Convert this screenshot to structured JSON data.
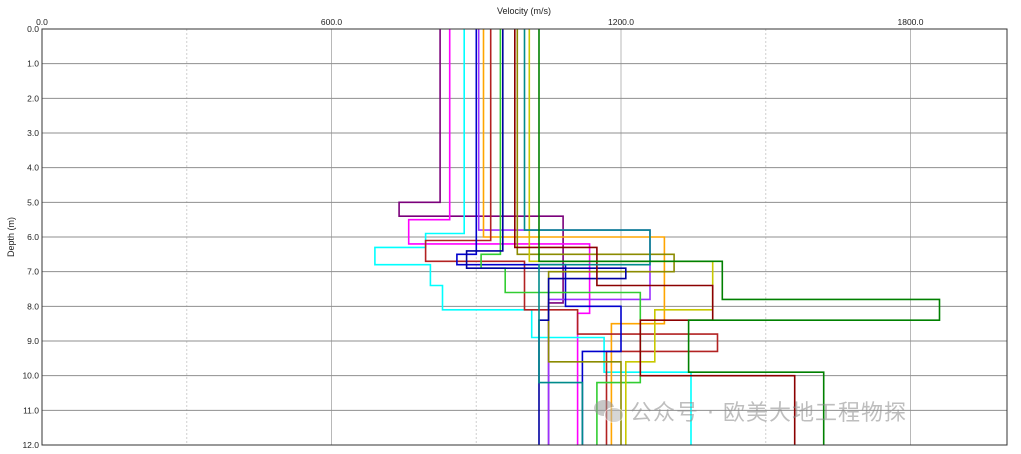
{
  "chart_data": {
    "type": "line",
    "title": "",
    "xlabel": "Velocity (m/s)",
    "ylabel": "Depth (m)",
    "xlim": [
      0,
      2000
    ],
    "ylim": [
      0,
      12
    ],
    "x_axis_position": "top",
    "y_inverted": true,
    "x_ticks": [
      0,
      600,
      1200,
      1800
    ],
    "x_tick_labels": [
      "0.0",
      "600.0",
      "1200.0",
      "1800.0"
    ],
    "y_ticks": [
      0,
      1,
      2,
      3,
      4,
      5,
      6,
      7,
      8,
      9,
      10,
      11,
      12
    ],
    "y_tick_labels": [
      "0.0",
      "1.0",
      "2.0",
      "3.0",
      "4.0",
      "5.0",
      "6.0",
      "7.0",
      "8.0",
      "9.0",
      "10.0",
      "11.0",
      "12.0"
    ],
    "grid": true,
    "legend": "none",
    "series": [
      {
        "color": "#7b007b",
        "points": [
          [
            825,
            0
          ],
          [
            825,
            5.0
          ],
          [
            740,
            5.0
          ],
          [
            740,
            5.4
          ],
          [
            1080,
            5.4
          ],
          [
            1080,
            7.9
          ],
          [
            1050,
            7.9
          ],
          [
            1050,
            12
          ]
        ]
      },
      {
        "color": "#ff00ff",
        "points": [
          [
            845,
            0
          ],
          [
            845,
            5.5
          ],
          [
            760,
            5.5
          ],
          [
            760,
            6.2
          ],
          [
            1135,
            6.2
          ],
          [
            1135,
            8.2
          ],
          [
            1110,
            8.2
          ],
          [
            1110,
            12
          ]
        ]
      },
      {
        "color": "#00ffff",
        "points": [
          [
            875,
            0
          ],
          [
            875,
            5.9
          ],
          [
            795,
            5.9
          ],
          [
            795,
            6.3
          ],
          [
            690,
            6.3
          ],
          [
            690,
            6.8
          ],
          [
            805,
            6.8
          ],
          [
            805,
            7.4
          ],
          [
            830,
            7.4
          ],
          [
            830,
            8.1
          ],
          [
            1015,
            8.1
          ],
          [
            1015,
            8.9
          ],
          [
            1165,
            8.9
          ],
          [
            1165,
            9.9
          ],
          [
            1345,
            9.9
          ],
          [
            1345,
            12
          ]
        ]
      },
      {
        "color": "#9b30ff",
        "points": [
          [
            905,
            0
          ],
          [
            905,
            5.8
          ],
          [
            1260,
            5.8
          ],
          [
            1260,
            7.8
          ],
          [
            1050,
            7.8
          ],
          [
            1050,
            12
          ]
        ]
      },
      {
        "color": "#ffa500",
        "points": [
          [
            915,
            0
          ],
          [
            915,
            6.0
          ],
          [
            1290,
            6.0
          ],
          [
            1290,
            8.5
          ],
          [
            1180,
            8.5
          ],
          [
            1180,
            12
          ]
        ]
      },
      {
        "color": "#b22222",
        "points": [
          [
            930,
            0
          ],
          [
            930,
            6.1
          ],
          [
            795,
            6.1
          ],
          [
            795,
            6.7
          ],
          [
            1000,
            6.7
          ],
          [
            1000,
            8.1
          ],
          [
            1110,
            8.1
          ],
          [
            1110,
            8.8
          ],
          [
            1400,
            8.8
          ],
          [
            1400,
            9.3
          ],
          [
            1170,
            9.3
          ],
          [
            1170,
            12
          ]
        ]
      },
      {
        "color": "#0000cd",
        "points": [
          [
            900,
            0
          ],
          [
            900,
            6.5
          ],
          [
            860,
            6.5
          ],
          [
            860,
            6.8
          ],
          [
            1085,
            6.8
          ],
          [
            1085,
            8.0
          ],
          [
            1200,
            8.0
          ],
          [
            1200,
            9.3
          ],
          [
            1120,
            9.3
          ],
          [
            1120,
            12
          ]
        ]
      },
      {
        "color": "#32cd32",
        "points": [
          [
            950,
            0
          ],
          [
            950,
            6.5
          ],
          [
            910,
            6.5
          ],
          [
            910,
            6.9
          ],
          [
            960,
            6.9
          ],
          [
            960,
            7.6
          ],
          [
            1240,
            7.6
          ],
          [
            1240,
            10.2
          ],
          [
            1150,
            10.2
          ],
          [
            1150,
            12
          ]
        ]
      },
      {
        "color": "#8b8b00",
        "points": [
          [
            985,
            0
          ],
          [
            985,
            6.5
          ],
          [
            1310,
            6.5
          ],
          [
            1310,
            7.0
          ],
          [
            1050,
            7.0
          ],
          [
            1050,
            9.6
          ],
          [
            1200,
            9.6
          ],
          [
            1200,
            12
          ]
        ]
      },
      {
        "color": "#c8c800",
        "points": [
          [
            1010,
            0
          ],
          [
            1010,
            6.7
          ],
          [
            1390,
            6.7
          ],
          [
            1390,
            8.1
          ],
          [
            1270,
            8.1
          ],
          [
            1270,
            9.6
          ],
          [
            1210,
            9.6
          ],
          [
            1210,
            12
          ]
        ]
      },
      {
        "color": "#0000a0",
        "points": [
          [
            955,
            0
          ],
          [
            955,
            6.4
          ],
          [
            880,
            6.4
          ],
          [
            880,
            6.9
          ],
          [
            1210,
            6.9
          ],
          [
            1210,
            7.2
          ],
          [
            1050,
            7.2
          ],
          [
            1050,
            8.4
          ],
          [
            1030,
            8.4
          ],
          [
            1030,
            12
          ]
        ]
      },
      {
        "color": "#8b0000",
        "points": [
          [
            980,
            0
          ],
          [
            980,
            6.3
          ],
          [
            1150,
            6.3
          ],
          [
            1150,
            7.4
          ],
          [
            1390,
            7.4
          ],
          [
            1390,
            8.4
          ],
          [
            1240,
            8.4
          ],
          [
            1240,
            10.0
          ],
          [
            1560,
            10.0
          ],
          [
            1560,
            12
          ]
        ]
      },
      {
        "color": "#008b8b",
        "points": [
          [
            1000,
            0
          ],
          [
            1000,
            5.8
          ],
          [
            1260,
            5.8
          ],
          [
            1260,
            6.8
          ],
          [
            1030,
            6.8
          ],
          [
            1030,
            10.2
          ],
          [
            1120,
            10.2
          ],
          [
            1120,
            12
          ]
        ]
      },
      {
        "color": "#008000",
        "points": [
          [
            1030,
            0
          ],
          [
            1030,
            6.7
          ],
          [
            1410,
            6.7
          ],
          [
            1410,
            7.8
          ],
          [
            1860,
            7.8
          ],
          [
            1860,
            8.4
          ],
          [
            1340,
            8.4
          ],
          [
            1340,
            9.9
          ],
          [
            1620,
            9.9
          ],
          [
            1620,
            12
          ]
        ]
      }
    ]
  },
  "watermark": {
    "icon": "wechat-icon",
    "text": "公众号 · 欧美大地工程物探"
  }
}
